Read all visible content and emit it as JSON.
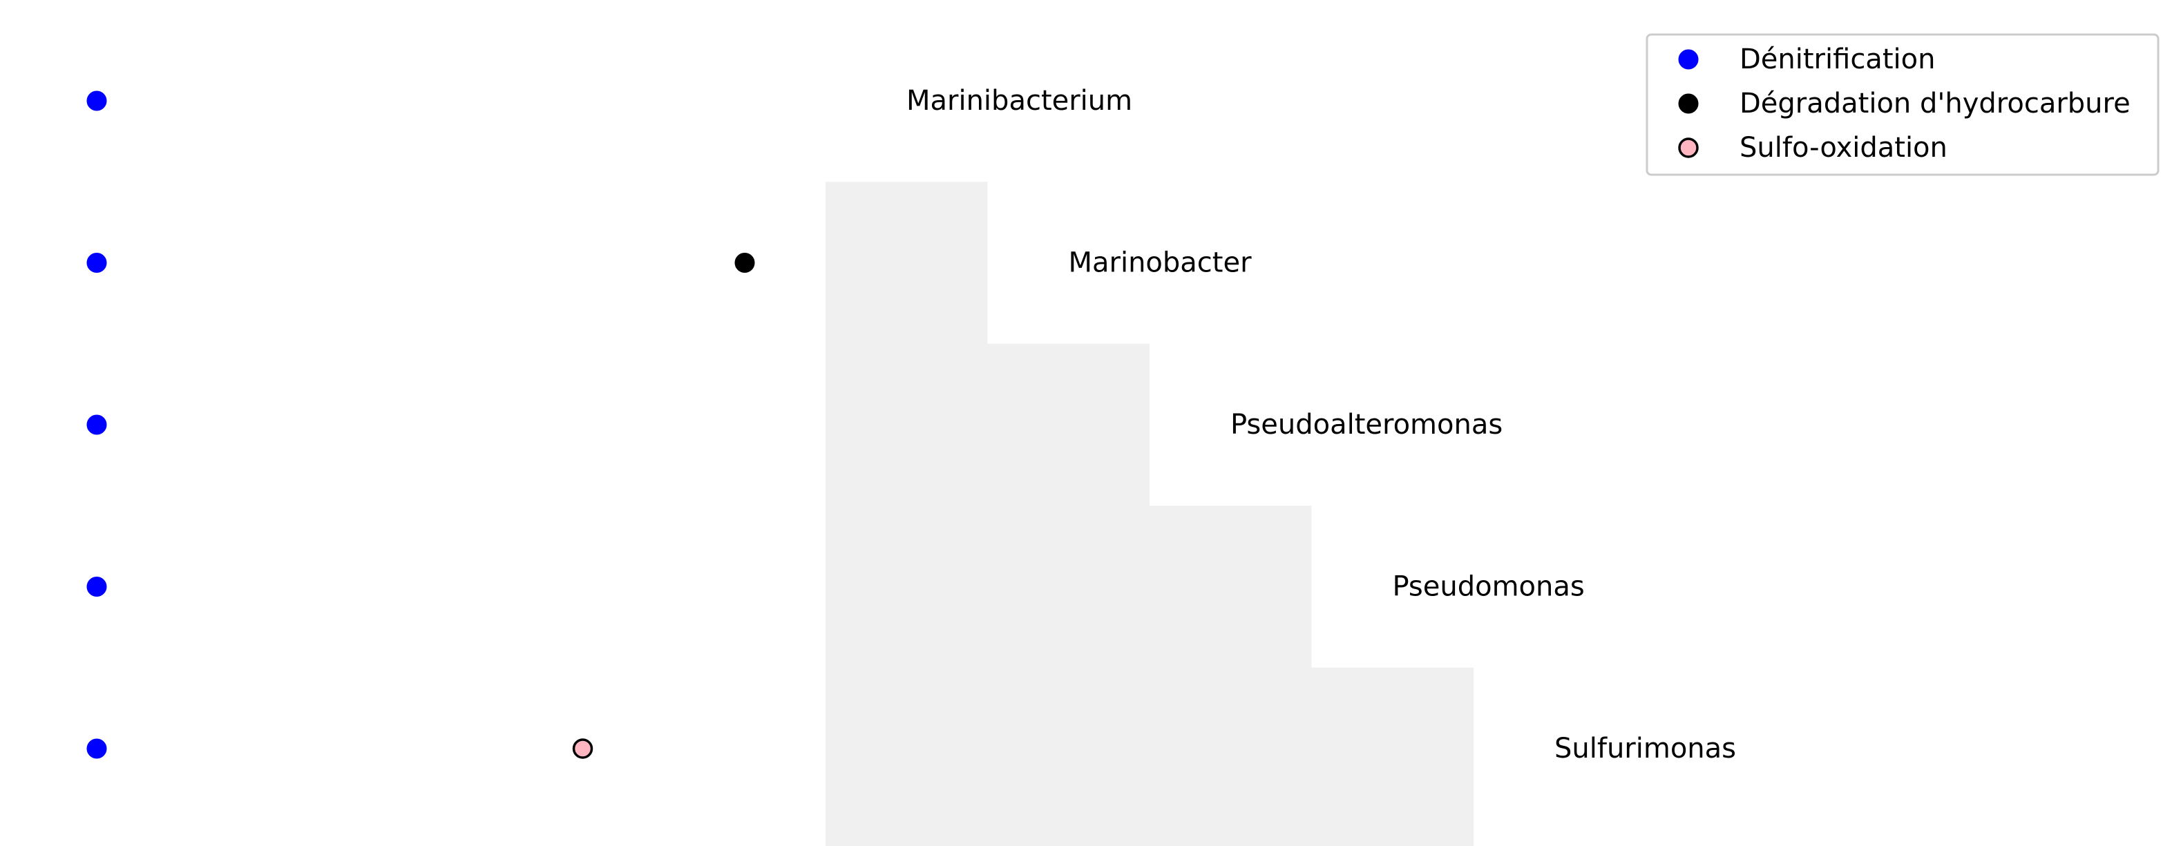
{
  "chart_data": {
    "type": "scatter",
    "title": "",
    "xlabel": "",
    "ylabel": "",
    "grid": false,
    "axes_visible": false,
    "legend_position": "top-right",
    "categories": [
      "Marinibacterium",
      "Marinobacter",
      "Pseudoalteromonas",
      "Pseudomonas",
      "Sulfurimonas"
    ],
    "series": [
      {
        "name": "Dénitrification",
        "color": "#0000ff",
        "edge_color": "#0000ff",
        "points": [
          {
            "x": 0,
            "y": "Marinibacterium"
          },
          {
            "x": 0,
            "y": "Marinobacter"
          },
          {
            "x": 0,
            "y": "Pseudoalteromonas"
          },
          {
            "x": 0,
            "y": "Pseudomonas"
          },
          {
            "x": 0,
            "y": "Sulfurimonas"
          }
        ]
      },
      {
        "name": "Dégradation d'hydrocarbure",
        "color": "#000000",
        "edge_color": "#000000",
        "points": [
          {
            "x": 4,
            "y": "Marinobacter"
          }
        ]
      },
      {
        "name": "Sulfo-oxidation",
        "color": "#ffb6c1",
        "edge_color": "#000000",
        "points": [
          {
            "x": 3,
            "y": "Sulfurimonas"
          }
        ]
      }
    ],
    "background_fill_color": "#f0f0f0"
  }
}
